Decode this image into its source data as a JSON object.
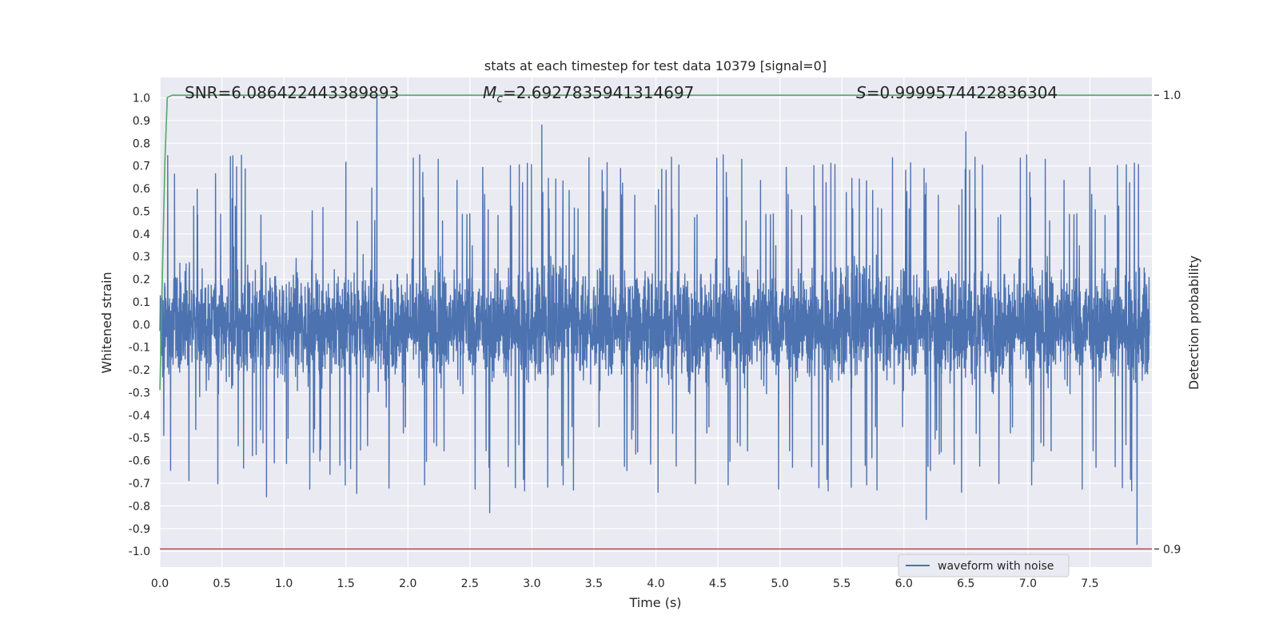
{
  "chart_data": {
    "type": "line",
    "title": "stats at each timestep for test data 10379 [signal=0]",
    "xlabel": "Time (s)",
    "ylabel": "Whitened strain",
    "ylabel_right": "Detection probability",
    "xlim": [
      0.0,
      8.0
    ],
    "ylim": [
      -1.07,
      1.09
    ],
    "ylim_right": [
      0.896,
      1.0039
    ],
    "x_ticks": [
      0.0,
      0.5,
      1.0,
      1.5,
      2.0,
      2.5,
      3.0,
      3.5,
      4.0,
      4.5,
      5.0,
      5.5,
      6.0,
      6.5,
      7.0,
      7.5
    ],
    "x_tick_labels": [
      "0.0",
      "0.5",
      "1.0",
      "1.5",
      "2.0",
      "2.5",
      "3.0",
      "3.5",
      "4.0",
      "4.5",
      "5.0",
      "5.5",
      "6.0",
      "6.5",
      "7.0",
      "7.5"
    ],
    "y_ticks": [
      1.0,
      0.9,
      0.8,
      0.7,
      0.6,
      0.5,
      0.4,
      0.3,
      0.2,
      0.1,
      0.0,
      -0.1,
      -0.2,
      -0.3,
      -0.4,
      -0.5,
      -0.6,
      -0.7,
      -0.8,
      -0.9,
      -1.0
    ],
    "y_tick_labels": [
      "1.0",
      "0.9",
      "0.8",
      "0.7",
      "0.6",
      "0.5",
      "0.4",
      "0.3",
      "0.2",
      "0.1",
      "0.0",
      "-0.1",
      "-0.2",
      "-0.3",
      "-0.4",
      "-0.5",
      "-0.6",
      "-0.7",
      "-0.8",
      "-0.9",
      "-1.0"
    ],
    "y_right_ticks": [
      1.0,
      0.9
    ],
    "y_right_tick_labels": [
      "1.0",
      "0.9"
    ],
    "grid": true,
    "legend": {
      "placement": "lower-center-right",
      "entries": [
        "waveform with noise"
      ]
    },
    "annotations": {
      "snr": "SNR=6.086422443389893",
      "mc_symbol": "M",
      "mc_sub": "c",
      "mc_value": "=2.6927835941314697",
      "s_symbol": "S",
      "s_value": "=0.9999574422836304"
    },
    "series": [
      {
        "name": "waveform with noise",
        "axis": "left",
        "kind": "noise",
        "color": "#4c72b0",
        "x_range": [
          0.0,
          7.98
        ],
        "core_amplitude": 0.42,
        "peaks": [
          {
            "x": 1.75,
            "y": 1.0
          },
          {
            "x": 3.08,
            "y": 0.88
          },
          {
            "x": 7.88,
            "y": -0.97
          },
          {
            "x": 2.66,
            "y": -0.83
          },
          {
            "x": 6.18,
            "y": -0.86
          },
          {
            "x": 6.5,
            "y": 0.85
          },
          {
            "x": 0.86,
            "y": -0.76
          }
        ]
      },
      {
        "name": "detection probability",
        "axis": "right",
        "color": "#55a868",
        "x": [
          0.0,
          0.02,
          0.04,
          0.06,
          0.1,
          8.0
        ],
        "y": [
          0.935,
          0.96,
          0.985,
          0.9995,
          1.0,
          1.0
        ]
      },
      {
        "name": "threshold",
        "axis": "right",
        "color": "#c44e52",
        "x": [
          0.0,
          8.0
        ],
        "y": [
          0.9,
          0.9
        ]
      }
    ]
  }
}
